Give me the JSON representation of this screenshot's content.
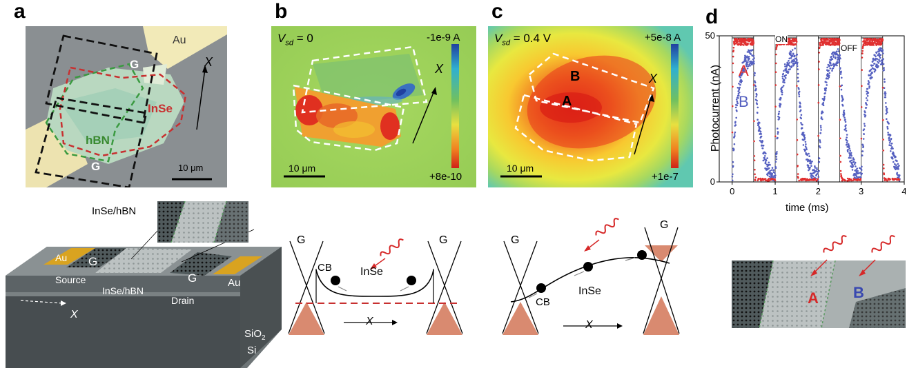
{
  "panel_labels": [
    "a",
    "b",
    "c",
    "d"
  ],
  "panel_a": {
    "au": "Au",
    "x_axis": "X",
    "gate_top": "G",
    "gate_bottom": "G",
    "inse": "InSe",
    "hbn": "hBN",
    "scalebar": "10 μm"
  },
  "panel_b": {
    "vsd_symbol": "V",
    "vsd_sub": "sd",
    "vsd_value": " = 0",
    "cbar_top": "-1e-9 A",
    "cbar_bottom": "+8e-10",
    "x_axis": "X",
    "scalebar": "10 μm"
  },
  "panel_c": {
    "vsd_symbol": "V",
    "vsd_sub": "sd",
    "vsd_value": " = 0.4 V",
    "cbar_top": "+5e-8 A",
    "cbar_bottom": "+1e-7",
    "x_axis": "X",
    "region_a": "A",
    "region_b": "B",
    "scalebar": "10 μm"
  },
  "colors": {
    "red_trace": "#e03030",
    "blue_trace": "#5560c0",
    "au": "#e0a020",
    "fill_band": "#d98a70",
    "label_red": "#d62828",
    "label_blue": "#3848b0",
    "hbn_green": "#3a8a30"
  },
  "chart_data": {
    "type": "scatter",
    "title": "",
    "xlabel": "time (ms)",
    "ylabel": "Photocurrent (nA)",
    "xlim": [
      -0.3,
      4.0
    ],
    "ylim": [
      0,
      50
    ],
    "x_ticks": [
      "0",
      "1",
      "2",
      "3",
      "4"
    ],
    "y_ticks": [
      "0",
      "50"
    ],
    "annotations": [
      "ON",
      "OFF"
    ],
    "on_intervals": [
      [
        0,
        0.5
      ],
      [
        1,
        1.5
      ],
      [
        2,
        2.5
      ],
      [
        3,
        3.5
      ]
    ],
    "series": [
      {
        "name": "A",
        "color": "#e03030",
        "on_level": 48,
        "off_level": 0,
        "rise_tau_ms": 0.01,
        "decay_tau_ms": 0.01
      },
      {
        "name": "B",
        "color": "#5560c0",
        "on_level": 44,
        "off_level": 0,
        "rise_tau_ms": 0.12,
        "decay_tau_ms": 0.15
      }
    ]
  },
  "schematic": {
    "inse_hbn_inset": "InSe/hBN",
    "au_left": "Au",
    "gate_left": "G",
    "gate_right": "G",
    "au_right": "Au",
    "source": "Source",
    "center": "InSe/hBN",
    "drain": "Drain",
    "x_axis": "X",
    "sio2": "SiO",
    "sio2_sub": "2",
    "si": "Si"
  },
  "band_b": {
    "g_left": "G",
    "g_right": "G",
    "cb": "CB",
    "inse": "InSe",
    "x_axis": "X"
  },
  "band_c": {
    "g_left": "G",
    "g_right": "G",
    "cb": "CB",
    "inse": "InSe",
    "x_axis": "X"
  },
  "panel_d_inset": {
    "label_a": "A",
    "label_b": "B"
  }
}
